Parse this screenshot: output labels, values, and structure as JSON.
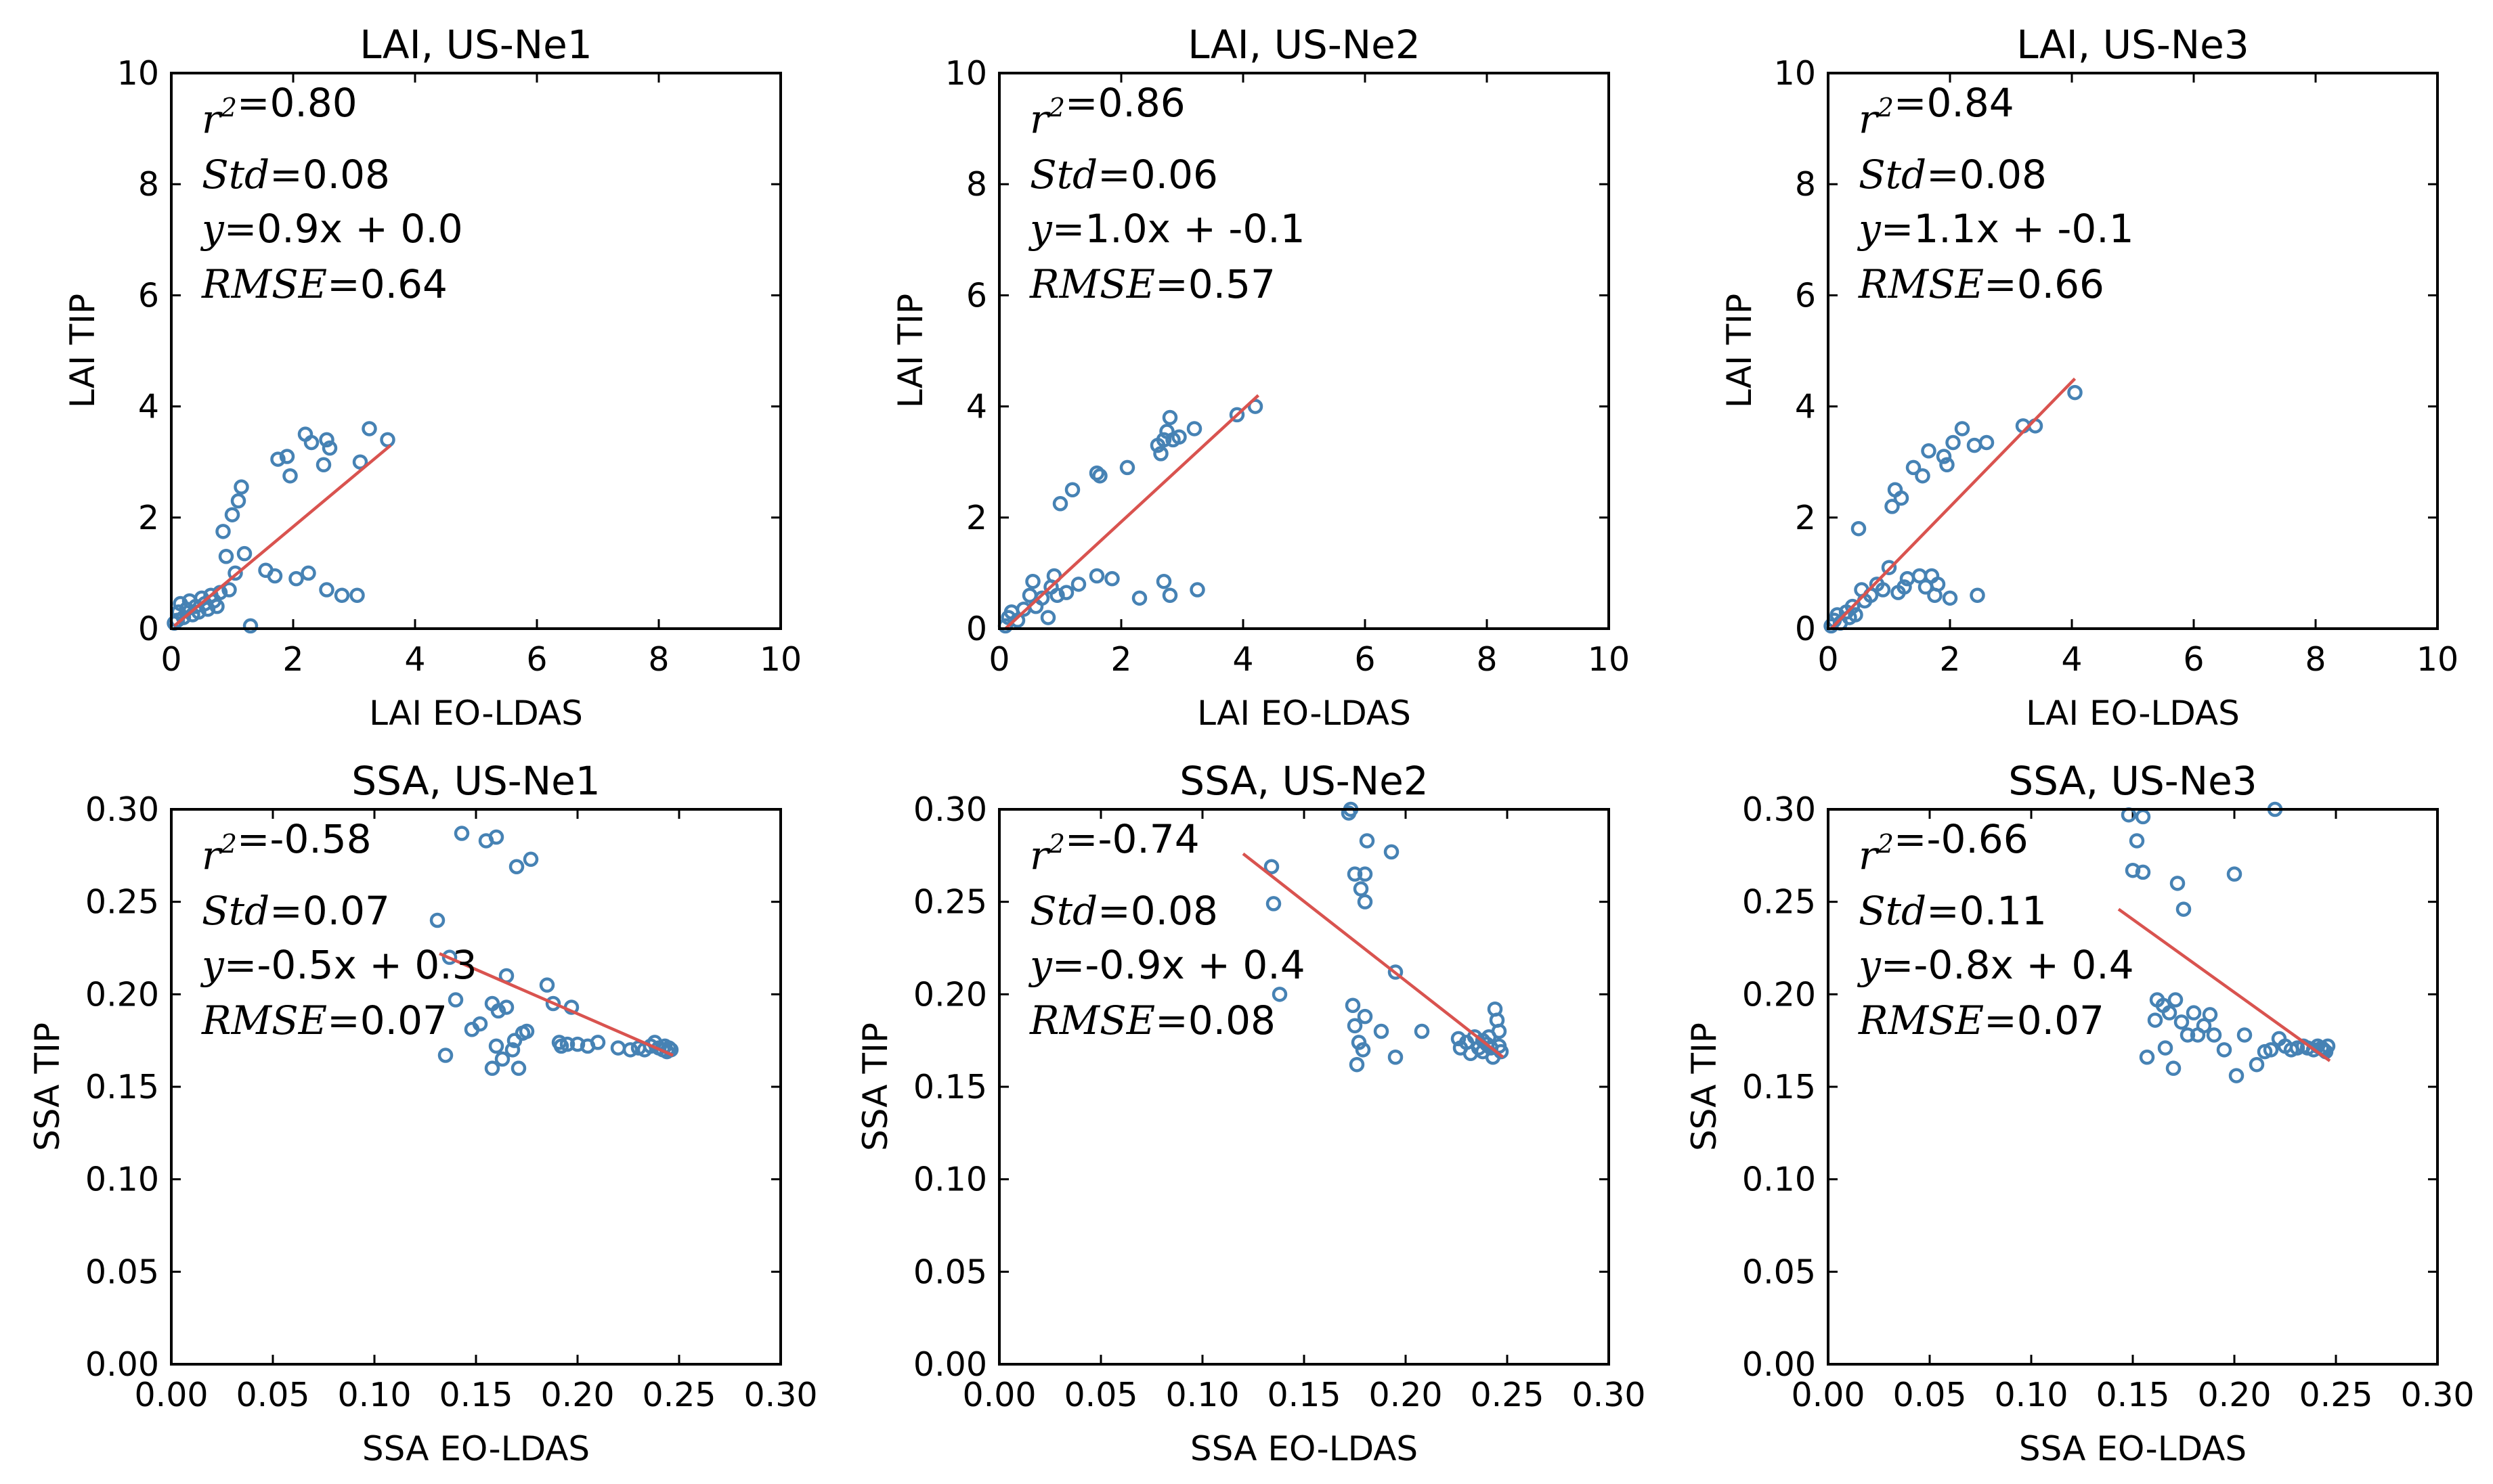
{
  "colors": {
    "points": "#4682b4",
    "fit_line": "#d9534f"
  },
  "chart_data": [
    {
      "type": "scatter",
      "title": "LAI, US-Ne1",
      "xlabel": "LAI EO-LDAS",
      "ylabel": "LAI TIP",
      "xlim": [
        0,
        10
      ],
      "ylim": [
        0,
        10
      ],
      "xticks": [
        "0",
        "2",
        "4",
        "6",
        "8",
        "10"
      ],
      "yticks": [
        "0",
        "2",
        "4",
        "6",
        "8",
        "10"
      ],
      "stats": {
        "r2_label": "r^2",
        "r2": "0.80",
        "std_label": "Std",
        "std": "0.08",
        "y_label": "y",
        "eq": "0.9x + 0.0",
        "rmse_label": "RMSE",
        "rmse": "0.64"
      },
      "fit": {
        "x": [
          0.05,
          3.6
        ],
        "y": [
          0.05,
          3.3
        ]
      },
      "points": [
        [
          0.05,
          0.1
        ],
        [
          0.1,
          0.15
        ],
        [
          0.12,
          0.3
        ],
        [
          0.15,
          0.45
        ],
        [
          0.2,
          0.2
        ],
        [
          0.25,
          0.35
        ],
        [
          0.3,
          0.5
        ],
        [
          0.35,
          0.25
        ],
        [
          0.4,
          0.4
        ],
        [
          0.45,
          0.3
        ],
        [
          0.5,
          0.55
        ],
        [
          0.55,
          0.45
        ],
        [
          0.6,
          0.35
        ],
        [
          0.65,
          0.6
        ],
        [
          0.7,
          0.5
        ],
        [
          0.75,
          0.4
        ],
        [
          0.8,
          0.65
        ],
        [
          0.85,
          1.75
        ],
        [
          0.9,
          1.3
        ],
        [
          0.95,
          0.7
        ],
        [
          1.0,
          2.05
        ],
        [
          1.05,
          1.0
        ],
        [
          1.1,
          2.3
        ],
        [
          1.15,
          2.55
        ],
        [
          1.2,
          1.35
        ],
        [
          1.3,
          0.05
        ],
        [
          1.55,
          1.05
        ],
        [
          1.7,
          0.95
        ],
        [
          1.75,
          3.05
        ],
        [
          1.9,
          3.1
        ],
        [
          1.95,
          2.75
        ],
        [
          2.05,
          0.9
        ],
        [
          2.2,
          3.5
        ],
        [
          2.25,
          1.0
        ],
        [
          2.3,
          3.35
        ],
        [
          2.5,
          2.95
        ],
        [
          2.55,
          3.4
        ],
        [
          2.6,
          3.25
        ],
        [
          2.55,
          0.7
        ],
        [
          2.8,
          0.6
        ],
        [
          3.05,
          0.6
        ],
        [
          3.1,
          3.0
        ],
        [
          3.25,
          3.6
        ],
        [
          3.55,
          3.4
        ]
      ]
    },
    {
      "type": "scatter",
      "title": "LAI, US-Ne2",
      "xlabel": "LAI EO-LDAS",
      "ylabel": "LAI TIP",
      "xlim": [
        0,
        10
      ],
      "ylim": [
        0,
        10
      ],
      "xticks": [
        "0",
        "2",
        "4",
        "6",
        "8",
        "10"
      ],
      "yticks": [
        "0",
        "2",
        "4",
        "6",
        "8",
        "10"
      ],
      "stats": {
        "r2_label": "r^2",
        "r2": "0.86",
        "std_label": "Std",
        "std": "0.06",
        "y_label": "y",
        "eq": "1.0x + -0.1",
        "rmse_label": "RMSE",
        "rmse": "0.57"
      },
      "fit": {
        "x": [
          0.1,
          4.25
        ],
        "y": [
          0.0,
          4.2
        ]
      },
      "points": [
        [
          0.1,
          0.05
        ],
        [
          0.15,
          0.2
        ],
        [
          0.2,
          0.3
        ],
        [
          0.3,
          0.15
        ],
        [
          0.4,
          0.35
        ],
        [
          0.5,
          0.6
        ],
        [
          0.55,
          0.85
        ],
        [
          0.6,
          0.4
        ],
        [
          0.7,
          0.55
        ],
        [
          0.8,
          0.2
        ],
        [
          0.85,
          0.75
        ],
        [
          0.9,
          0.95
        ],
        [
          0.95,
          0.6
        ],
        [
          1.0,
          2.25
        ],
        [
          1.1,
          0.65
        ],
        [
          1.2,
          2.5
        ],
        [
          1.3,
          0.8
        ],
        [
          1.6,
          2.8
        ],
        [
          1.65,
          2.75
        ],
        [
          1.6,
          0.95
        ],
        [
          1.85,
          0.9
        ],
        [
          2.1,
          2.9
        ],
        [
          2.3,
          0.55
        ],
        [
          2.6,
          3.3
        ],
        [
          2.65,
          3.15
        ],
        [
          2.7,
          3.4
        ],
        [
          2.7,
          0.85
        ],
        [
          2.75,
          3.55
        ],
        [
          2.8,
          3.8
        ],
        [
          2.8,
          0.6
        ],
        [
          2.85,
          3.4
        ],
        [
          2.95,
          3.45
        ],
        [
          3.2,
          3.6
        ],
        [
          3.25,
          0.7
        ],
        [
          3.9,
          3.85
        ],
        [
          4.2,
          4.0
        ]
      ]
    },
    {
      "type": "scatter",
      "title": "LAI, US-Ne3",
      "xlabel": "LAI EO-LDAS",
      "ylabel": "LAI TIP",
      "xlim": [
        0,
        10
      ],
      "ylim": [
        0,
        10
      ],
      "xticks": [
        "0",
        "2",
        "4",
        "6",
        "8",
        "10"
      ],
      "yticks": [
        "0",
        "2",
        "4",
        "6",
        "8",
        "10"
      ],
      "stats": {
        "r2_label": "r^2",
        "r2": "0.84",
        "std_label": "Std",
        "std": "0.08",
        "y_label": "y",
        "eq": "1.1x + -0.1",
        "rmse_label": "RMSE",
        "rmse": "0.66"
      },
      "fit": {
        "x": [
          0.05,
          4.05
        ],
        "y": [
          0.0,
          4.5
        ]
      },
      "points": [
        [
          0.05,
          0.05
        ],
        [
          0.1,
          0.15
        ],
        [
          0.15,
          0.25
        ],
        [
          0.2,
          0.1
        ],
        [
          0.3,
          0.3
        ],
        [
          0.35,
          0.2
        ],
        [
          0.4,
          0.4
        ],
        [
          0.45,
          0.25
        ],
        [
          0.5,
          1.8
        ],
        [
          0.55,
          0.7
        ],
        [
          0.6,
          0.5
        ],
        [
          0.7,
          0.6
        ],
        [
          0.8,
          0.8
        ],
        [
          0.9,
          0.7
        ],
        [
          1.0,
          1.1
        ],
        [
          1.05,
          2.2
        ],
        [
          1.1,
          2.5
        ],
        [
          1.15,
          0.65
        ],
        [
          1.2,
          2.35
        ],
        [
          1.25,
          0.75
        ],
        [
          1.3,
          0.9
        ],
        [
          1.4,
          2.9
        ],
        [
          1.5,
          0.95
        ],
        [
          1.55,
          2.75
        ],
        [
          1.6,
          0.75
        ],
        [
          1.65,
          3.2
        ],
        [
          1.7,
          0.95
        ],
        [
          1.75,
          0.6
        ],
        [
          1.8,
          0.8
        ],
        [
          1.9,
          3.1
        ],
        [
          1.95,
          2.95
        ],
        [
          2.0,
          0.55
        ],
        [
          2.05,
          3.35
        ],
        [
          2.2,
          3.6
        ],
        [
          2.4,
          3.3
        ],
        [
          2.45,
          0.6
        ],
        [
          2.6,
          3.35
        ],
        [
          3.2,
          3.65
        ],
        [
          3.4,
          3.65
        ],
        [
          4.05,
          4.25
        ]
      ]
    },
    {
      "type": "scatter",
      "title": "SSA, US-Ne1",
      "xlabel": "SSA EO-LDAS",
      "ylabel": "SSA TIP",
      "xlim": [
        0,
        0.3
      ],
      "ylim": [
        0,
        0.3
      ],
      "xticks": [
        "0.00",
        "0.05",
        "0.10",
        "0.15",
        "0.20",
        "0.25",
        "0.30"
      ],
      "yticks": [
        "0.00",
        "0.05",
        "0.10",
        "0.15",
        "0.20",
        "0.25",
        "0.30"
      ],
      "stats": {
        "r2_label": "r^2",
        "r2": "-0.58",
        "std_label": "Std",
        "std": "0.07",
        "y_label": "y",
        "eq": "-0.5x + 0.3",
        "rmse_label": "RMSE",
        "rmse": "0.07"
      },
      "fit": {
        "x": [
          0.132,
          0.247
        ],
        "y": [
          0.222,
          0.167
        ]
      },
      "points": [
        [
          0.131,
          0.24
        ],
        [
          0.135,
          0.167
        ],
        [
          0.137,
          0.22
        ],
        [
          0.14,
          0.197
        ],
        [
          0.143,
          0.287
        ],
        [
          0.148,
          0.181
        ],
        [
          0.152,
          0.184
        ],
        [
          0.155,
          0.283
        ],
        [
          0.158,
          0.16
        ],
        [
          0.158,
          0.195
        ],
        [
          0.16,
          0.285
        ],
        [
          0.16,
          0.172
        ],
        [
          0.161,
          0.191
        ],
        [
          0.163,
          0.165
        ],
        [
          0.165,
          0.21
        ],
        [
          0.165,
          0.193
        ],
        [
          0.168,
          0.17
        ],
        [
          0.169,
          0.175
        ],
        [
          0.17,
          0.269
        ],
        [
          0.171,
          0.16
        ],
        [
          0.173,
          0.179
        ],
        [
          0.175,
          0.18
        ],
        [
          0.177,
          0.273
        ],
        [
          0.185,
          0.205
        ],
        [
          0.188,
          0.195
        ],
        [
          0.191,
          0.174
        ],
        [
          0.192,
          0.172
        ],
        [
          0.195,
          0.173
        ],
        [
          0.197,
          0.193
        ],
        [
          0.2,
          0.173
        ],
        [
          0.205,
          0.172
        ],
        [
          0.21,
          0.174
        ],
        [
          0.22,
          0.171
        ],
        [
          0.226,
          0.17
        ],
        [
          0.23,
          0.171
        ],
        [
          0.233,
          0.17
        ],
        [
          0.236,
          0.172
        ],
        [
          0.238,
          0.174
        ],
        [
          0.24,
          0.171
        ],
        [
          0.242,
          0.17
        ],
        [
          0.243,
          0.172
        ],
        [
          0.244,
          0.169
        ],
        [
          0.245,
          0.171
        ],
        [
          0.246,
          0.17
        ]
      ]
    },
    {
      "type": "scatter",
      "title": "SSA, US-Ne2",
      "xlabel": "SSA EO-LDAS",
      "ylabel": "SSA TIP",
      "xlim": [
        0,
        0.3
      ],
      "ylim": [
        0,
        0.3
      ],
      "xticks": [
        "0.00",
        "0.05",
        "0.10",
        "0.15",
        "0.20",
        "0.25",
        "0.30"
      ],
      "yticks": [
        "0.00",
        "0.05",
        "0.10",
        "0.15",
        "0.20",
        "0.25",
        "0.30"
      ],
      "stats": {
        "r2_label": "r^2",
        "r2": "-0.74",
        "std_label": "Std",
        "std": "0.08",
        "y_label": "y",
        "eq": "-0.9x + 0.4",
        "rmse_label": "RMSE",
        "rmse": "0.08"
      },
      "fit": {
        "x": [
          0.12,
          0.248
        ],
        "y": [
          0.276,
          0.166
        ]
      },
      "points": [
        [
          0.134,
          0.269
        ],
        [
          0.135,
          0.249
        ],
        [
          0.138,
          0.2
        ],
        [
          0.172,
          0.298
        ],
        [
          0.173,
          0.3
        ],
        [
          0.174,
          0.194
        ],
        [
          0.175,
          0.265
        ],
        [
          0.175,
          0.183
        ],
        [
          0.176,
          0.162
        ],
        [
          0.177,
          0.174
        ],
        [
          0.178,
          0.257
        ],
        [
          0.179,
          0.17
        ],
        [
          0.18,
          0.265
        ],
        [
          0.18,
          0.188
        ],
        [
          0.18,
          0.25
        ],
        [
          0.181,
          0.283
        ],
        [
          0.188,
          0.18
        ],
        [
          0.193,
          0.277
        ],
        [
          0.195,
          0.212
        ],
        [
          0.195,
          0.166
        ],
        [
          0.208,
          0.18
        ],
        [
          0.226,
          0.176
        ],
        [
          0.227,
          0.171
        ],
        [
          0.23,
          0.174
        ],
        [
          0.232,
          0.168
        ],
        [
          0.234,
          0.177
        ],
        [
          0.236,
          0.171
        ],
        [
          0.238,
          0.175
        ],
        [
          0.238,
          0.169
        ],
        [
          0.24,
          0.173
        ],
        [
          0.241,
          0.177
        ],
        [
          0.242,
          0.171
        ],
        [
          0.243,
          0.166
        ],
        [
          0.244,
          0.192
        ],
        [
          0.245,
          0.186
        ],
        [
          0.246,
          0.18
        ],
        [
          0.246,
          0.172
        ],
        [
          0.247,
          0.169
        ]
      ]
    },
    {
      "type": "scatter",
      "title": "SSA, US-Ne3",
      "xlabel": "SSA EO-LDAS",
      "ylabel": "SSA TIP",
      "xlim": [
        0,
        0.3
      ],
      "ylim": [
        0,
        0.3
      ],
      "xticks": [
        "0.00",
        "0.05",
        "0.10",
        "0.15",
        "0.20",
        "0.25",
        "0.30"
      ],
      "yticks": [
        "0.00",
        "0.05",
        "0.10",
        "0.15",
        "0.20",
        "0.25",
        "0.30"
      ],
      "stats": {
        "r2_label": "r^2",
        "r2": "-0.66",
        "std_label": "Std",
        "std": "0.11",
        "y_label": "y",
        "eq": "-0.8x + 0.4",
        "rmse_label": "RMSE",
        "rmse": "0.07"
      },
      "fit": {
        "x": [
          0.143,
          0.247
        ],
        "y": [
          0.246,
          0.164
        ]
      },
      "points": [
        [
          0.148,
          0.297
        ],
        [
          0.15,
          0.267
        ],
        [
          0.152,
          0.283
        ],
        [
          0.155,
          0.296
        ],
        [
          0.155,
          0.266
        ],
        [
          0.157,
          0.166
        ],
        [
          0.161,
          0.186
        ],
        [
          0.162,
          0.197
        ],
        [
          0.165,
          0.194
        ],
        [
          0.166,
          0.171
        ],
        [
          0.168,
          0.19
        ],
        [
          0.17,
          0.16
        ],
        [
          0.171,
          0.197
        ],
        [
          0.172,
          0.26
        ],
        [
          0.174,
          0.185
        ],
        [
          0.175,
          0.246
        ],
        [
          0.177,
          0.178
        ],
        [
          0.18,
          0.19
        ],
        [
          0.182,
          0.178
        ],
        [
          0.185,
          0.183
        ],
        [
          0.188,
          0.189
        ],
        [
          0.19,
          0.178
        ],
        [
          0.195,
          0.17
        ],
        [
          0.2,
          0.265
        ],
        [
          0.201,
          0.156
        ],
        [
          0.205,
          0.178
        ],
        [
          0.211,
          0.162
        ],
        [
          0.215,
          0.169
        ],
        [
          0.218,
          0.17
        ],
        [
          0.22,
          0.3
        ],
        [
          0.222,
          0.176
        ],
        [
          0.225,
          0.172
        ],
        [
          0.228,
          0.17
        ],
        [
          0.231,
          0.171
        ],
        [
          0.234,
          0.172
        ],
        [
          0.236,
          0.171
        ],
        [
          0.239,
          0.17
        ],
        [
          0.241,
          0.172
        ],
        [
          0.243,
          0.171
        ],
        [
          0.244,
          0.17
        ],
        [
          0.245,
          0.169
        ],
        [
          0.246,
          0.172
        ]
      ]
    }
  ]
}
